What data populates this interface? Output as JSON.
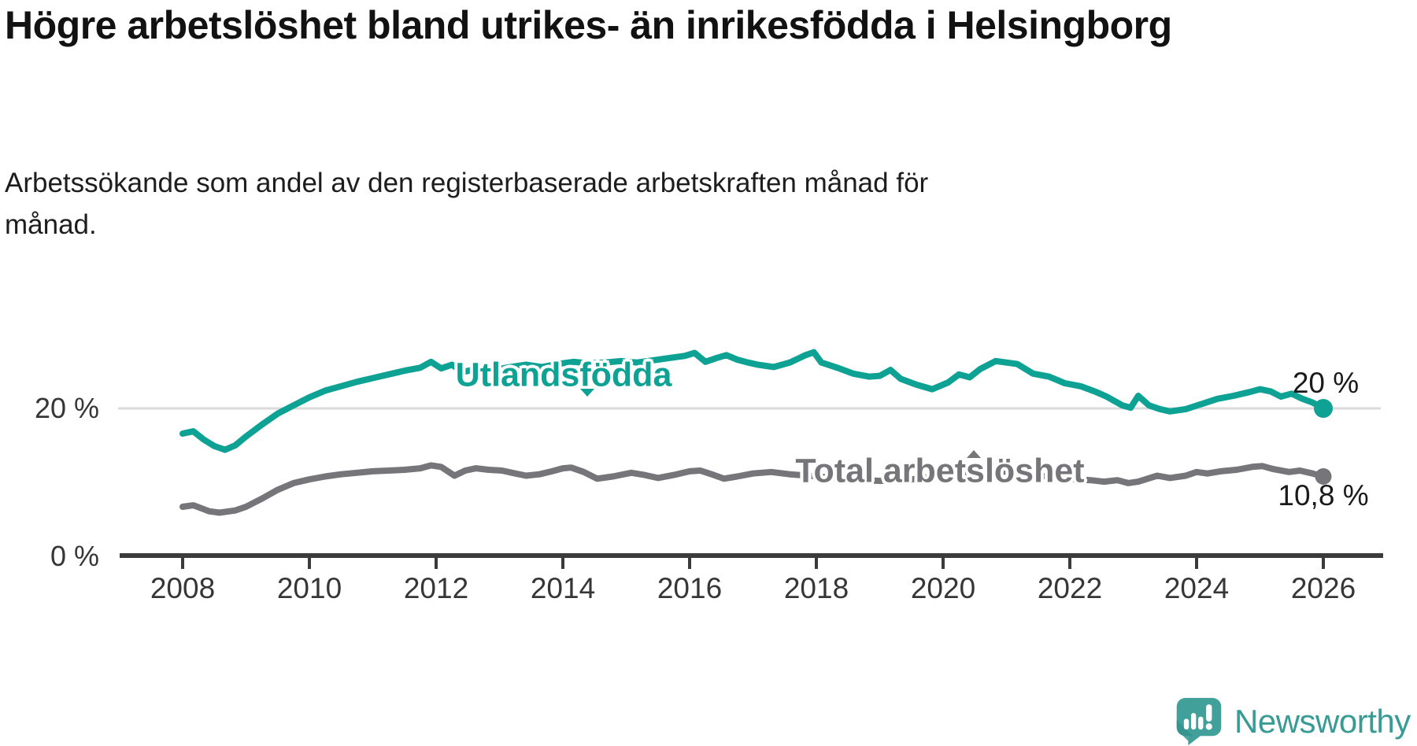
{
  "header": {
    "title": "Högre arbetslöshet bland utrikes- än inrikesfödda i Helsingborg",
    "subtitle": "Arbetssökande som andel av den registerbaserade arbetskraften månad för månad."
  },
  "chart_data": {
    "type": "line",
    "title": "Högre arbetslöshet bland utrikes- än inrikesfödda i Helsingborg",
    "subtitle": "Arbetssökande som andel av den registerbaserade arbetskraften månad för månad.",
    "x_axis": {
      "ticks": [
        2008,
        2010,
        2012,
        2014,
        2016,
        2018,
        2020,
        2022,
        2024,
        2026
      ],
      "range": [
        2008,
        2026.1
      ]
    },
    "y_axis": {
      "unit": "%",
      "range": [
        0,
        30
      ],
      "ticks": [
        {
          "value": 0,
          "label": "0 %"
        },
        {
          "value": 20,
          "label": "20 %"
        }
      ],
      "gridlines": [
        20
      ]
    },
    "legend_position": "inline-labels",
    "grid": "single-horizontal",
    "series": [
      {
        "name": "Utlandsfödda",
        "color": "#0EA294",
        "end_value": 20.0,
        "end_label": "20 %",
        "points": [
          [
            2008.0,
            16.6
          ],
          [
            2008.17,
            16.9
          ],
          [
            2008.33,
            15.8
          ],
          [
            2008.5,
            14.9
          ],
          [
            2008.67,
            14.4
          ],
          [
            2008.83,
            15.0
          ],
          [
            2009.0,
            16.2
          ],
          [
            2009.25,
            17.8
          ],
          [
            2009.5,
            19.3
          ],
          [
            2009.75,
            20.4
          ],
          [
            2010.0,
            21.5
          ],
          [
            2010.25,
            22.4
          ],
          [
            2010.5,
            23.0
          ],
          [
            2010.75,
            23.6
          ],
          [
            2011.0,
            24.1
          ],
          [
            2011.25,
            24.6
          ],
          [
            2011.5,
            25.1
          ],
          [
            2011.75,
            25.5
          ],
          [
            2011.92,
            26.3
          ],
          [
            2012.08,
            25.4
          ],
          [
            2012.25,
            25.9
          ],
          [
            2012.42,
            24.9
          ],
          [
            2012.67,
            25.4
          ],
          [
            2012.92,
            25.2
          ],
          [
            2013.17,
            25.6
          ],
          [
            2013.42,
            25.9
          ],
          [
            2013.67,
            25.6
          ],
          [
            2013.92,
            26.0
          ],
          [
            2014.17,
            26.3
          ],
          [
            2014.42,
            26.1
          ],
          [
            2014.67,
            26.2
          ],
          [
            2014.92,
            26.4
          ],
          [
            2015.17,
            26.2
          ],
          [
            2015.42,
            26.5
          ],
          [
            2015.67,
            26.8
          ],
          [
            2015.92,
            27.1
          ],
          [
            2016.08,
            27.5
          ],
          [
            2016.25,
            26.3
          ],
          [
            2016.42,
            26.8
          ],
          [
            2016.58,
            27.2
          ],
          [
            2016.75,
            26.6
          ],
          [
            2016.92,
            26.2
          ],
          [
            2017.08,
            25.9
          ],
          [
            2017.33,
            25.6
          ],
          [
            2017.58,
            26.2
          ],
          [
            2017.83,
            27.2
          ],
          [
            2017.96,
            27.6
          ],
          [
            2018.08,
            26.2
          ],
          [
            2018.33,
            25.5
          ],
          [
            2018.58,
            24.7
          ],
          [
            2018.83,
            24.3
          ],
          [
            2019.0,
            24.4
          ],
          [
            2019.17,
            25.2
          ],
          [
            2019.33,
            24.0
          ],
          [
            2019.58,
            23.2
          ],
          [
            2019.83,
            22.6
          ],
          [
            2020.08,
            23.5
          ],
          [
            2020.25,
            24.6
          ],
          [
            2020.42,
            24.2
          ],
          [
            2020.58,
            25.3
          ],
          [
            2020.83,
            26.4
          ],
          [
            2021.0,
            26.2
          ],
          [
            2021.17,
            26.0
          ],
          [
            2021.42,
            24.7
          ],
          [
            2021.67,
            24.3
          ],
          [
            2021.92,
            23.4
          ],
          [
            2022.17,
            23.0
          ],
          [
            2022.42,
            22.2
          ],
          [
            2022.58,
            21.6
          ],
          [
            2022.83,
            20.4
          ],
          [
            2022.96,
            20.1
          ],
          [
            2023.08,
            21.7
          ],
          [
            2023.25,
            20.4
          ],
          [
            2023.42,
            19.9
          ],
          [
            2023.58,
            19.6
          ],
          [
            2023.83,
            19.9
          ],
          [
            2024.08,
            20.6
          ],
          [
            2024.33,
            21.3
          ],
          [
            2024.58,
            21.7
          ],
          [
            2024.83,
            22.2
          ],
          [
            2025.0,
            22.6
          ],
          [
            2025.17,
            22.3
          ],
          [
            2025.33,
            21.6
          ],
          [
            2025.5,
            22.0
          ],
          [
            2025.67,
            21.3
          ],
          [
            2025.83,
            20.8
          ],
          [
            2026.0,
            20.0
          ]
        ]
      },
      {
        "name": "Total arbetslöshet",
        "color": "#76757A",
        "end_value": 10.8,
        "end_label": "10,8 %",
        "points": [
          [
            2008.0,
            6.7
          ],
          [
            2008.17,
            6.9
          ],
          [
            2008.42,
            6.1
          ],
          [
            2008.58,
            5.9
          ],
          [
            2008.83,
            6.2
          ],
          [
            2009.0,
            6.7
          ],
          [
            2009.25,
            7.8
          ],
          [
            2009.5,
            9.0
          ],
          [
            2009.75,
            9.9
          ],
          [
            2010.0,
            10.4
          ],
          [
            2010.25,
            10.8
          ],
          [
            2010.5,
            11.1
          ],
          [
            2010.75,
            11.3
          ],
          [
            2011.0,
            11.5
          ],
          [
            2011.25,
            11.6
          ],
          [
            2011.5,
            11.7
          ],
          [
            2011.75,
            11.9
          ],
          [
            2011.92,
            12.3
          ],
          [
            2012.08,
            12.1
          ],
          [
            2012.29,
            10.9
          ],
          [
            2012.46,
            11.6
          ],
          [
            2012.63,
            11.9
          ],
          [
            2012.83,
            11.7
          ],
          [
            2013.04,
            11.6
          ],
          [
            2013.25,
            11.2
          ],
          [
            2013.42,
            10.9
          ],
          [
            2013.63,
            11.1
          ],
          [
            2013.83,
            11.5
          ],
          [
            2014.0,
            11.9
          ],
          [
            2014.13,
            12.0
          ],
          [
            2014.33,
            11.4
          ],
          [
            2014.54,
            10.5
          ],
          [
            2014.79,
            10.8
          ],
          [
            2015.08,
            11.3
          ],
          [
            2015.29,
            11.0
          ],
          [
            2015.5,
            10.6
          ],
          [
            2015.75,
            11.0
          ],
          [
            2016.0,
            11.5
          ],
          [
            2016.17,
            11.6
          ],
          [
            2016.38,
            11.0
          ],
          [
            2016.54,
            10.5
          ],
          [
            2016.75,
            10.8
          ],
          [
            2017.0,
            11.2
          ],
          [
            2017.29,
            11.4
          ],
          [
            2017.58,
            11.1
          ],
          [
            2017.88,
            10.9
          ],
          [
            2018.17,
            10.7
          ],
          [
            2018.58,
            10.4
          ],
          [
            2019.0,
            10.2
          ],
          [
            2019.5,
            10.4
          ],
          [
            2020.0,
            10.9
          ],
          [
            2020.5,
            11.6
          ],
          [
            2020.92,
            11.5
          ],
          [
            2021.33,
            11.1
          ],
          [
            2021.75,
            10.7
          ],
          [
            2022.08,
            10.4
          ],
          [
            2022.33,
            10.3
          ],
          [
            2022.54,
            10.1
          ],
          [
            2022.75,
            10.3
          ],
          [
            2022.92,
            9.9
          ],
          [
            2023.08,
            10.1
          ],
          [
            2023.38,
            10.9
          ],
          [
            2023.58,
            10.6
          ],
          [
            2023.83,
            10.9
          ],
          [
            2024.0,
            11.4
          ],
          [
            2024.17,
            11.2
          ],
          [
            2024.38,
            11.5
          ],
          [
            2024.63,
            11.7
          ],
          [
            2024.88,
            12.1
          ],
          [
            2025.04,
            12.2
          ],
          [
            2025.21,
            11.8
          ],
          [
            2025.46,
            11.4
          ],
          [
            2025.63,
            11.6
          ],
          [
            2025.83,
            11.2
          ],
          [
            2026.0,
            10.8
          ]
        ]
      }
    ]
  },
  "branding": {
    "logo_text": "Newsworthy",
    "logo_color": "#41A09A"
  }
}
